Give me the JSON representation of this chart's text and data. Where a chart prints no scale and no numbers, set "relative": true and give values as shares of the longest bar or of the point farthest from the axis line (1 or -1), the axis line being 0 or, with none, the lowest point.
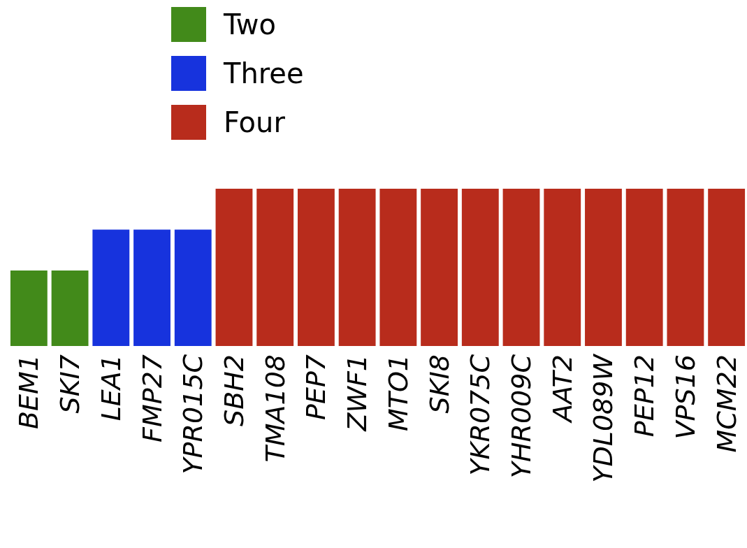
{
  "chart_data": {
    "type": "bar",
    "relative": true,
    "categories": [
      "BEM1",
      "SKI7",
      "LEA1",
      "FMP27",
      "YPR015C",
      "SBH2",
      "TMA108",
      "PEP7",
      "ZWF1",
      "MTO1",
      "SKI8",
      "YKR075C",
      "YHR009C",
      "AAT2",
      "YDL089W",
      "PEP12",
      "VPS16",
      "MCM22"
    ],
    "series": [
      {
        "name": "Two",
        "color": "#428a1a",
        "values": [
          0.48,
          0.48,
          null,
          null,
          null,
          null,
          null,
          null,
          null,
          null,
          null,
          null,
          null,
          null,
          null,
          null,
          null,
          null
        ]
      },
      {
        "name": "Three",
        "color": "#1733dd",
        "values": [
          null,
          null,
          0.74,
          0.74,
          0.74,
          null,
          null,
          null,
          null,
          null,
          null,
          null,
          null,
          null,
          null,
          null,
          null,
          null
        ]
      },
      {
        "name": "Four",
        "color": "#b82c1c",
        "values": [
          null,
          null,
          null,
          null,
          null,
          1,
          1,
          1,
          1,
          1,
          1,
          1,
          1,
          1,
          1,
          1,
          1,
          1
        ]
      }
    ],
    "legend": "top left"
  }
}
